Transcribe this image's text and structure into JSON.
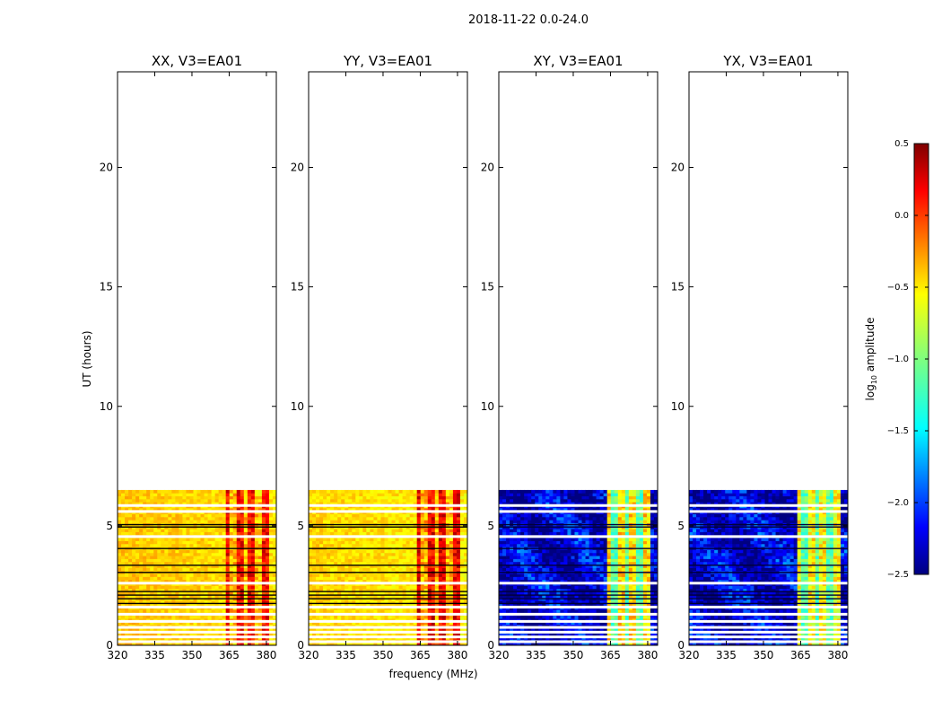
{
  "chart_data": {
    "type": "heatmap",
    "suptitle": "2018-11-22 0.0-24.0",
    "xlabel": "frequency (MHz)",
    "ylabel": "UT (hours)",
    "xlim": [
      320,
      384
    ],
    "ylim": [
      0,
      24
    ],
    "xticks": [
      320,
      335,
      350,
      365,
      380
    ],
    "yticks": [
      0,
      5,
      10,
      15,
      20
    ],
    "data_extent_hours": [
      0,
      6.5
    ],
    "panels": [
      {
        "title": "XX, V3=EA01",
        "polarization": "XX",
        "base_level": -0.45,
        "band_level": -0.1
      },
      {
        "title": "YY, V3=EA01",
        "polarization": "YY",
        "base_level": -0.5,
        "band_level": -0.05
      },
      {
        "title": "XY, V3=EA01",
        "polarization": "XY",
        "base_level": -2.25,
        "band_level": -0.7
      },
      {
        "title": "YX, V3=EA01",
        "polarization": "YX",
        "base_level": -2.25,
        "band_level": -0.8
      }
    ],
    "colorbar": {
      "label": "log",
      "label_sub": "10",
      "label_suffix": " amplitude",
      "range": [
        -2.5,
        0.5
      ],
      "ticks": [
        "0.5",
        "0.0",
        "−0.5",
        "−1.0",
        "−1.5",
        "−2.0",
        "−2.5"
      ],
      "colormap": "jet"
    },
    "flagged_white_rows_hours": [
      0.15,
      0.35,
      0.55,
      0.75,
      1.0,
      1.3,
      1.6,
      2.6,
      4.55,
      5.6,
      5.85
    ],
    "black_rows_hours": [
      1.75,
      1.95,
      2.1,
      2.25,
      3.05,
      3.35,
      4.05,
      4.95,
      5.05
    ]
  }
}
